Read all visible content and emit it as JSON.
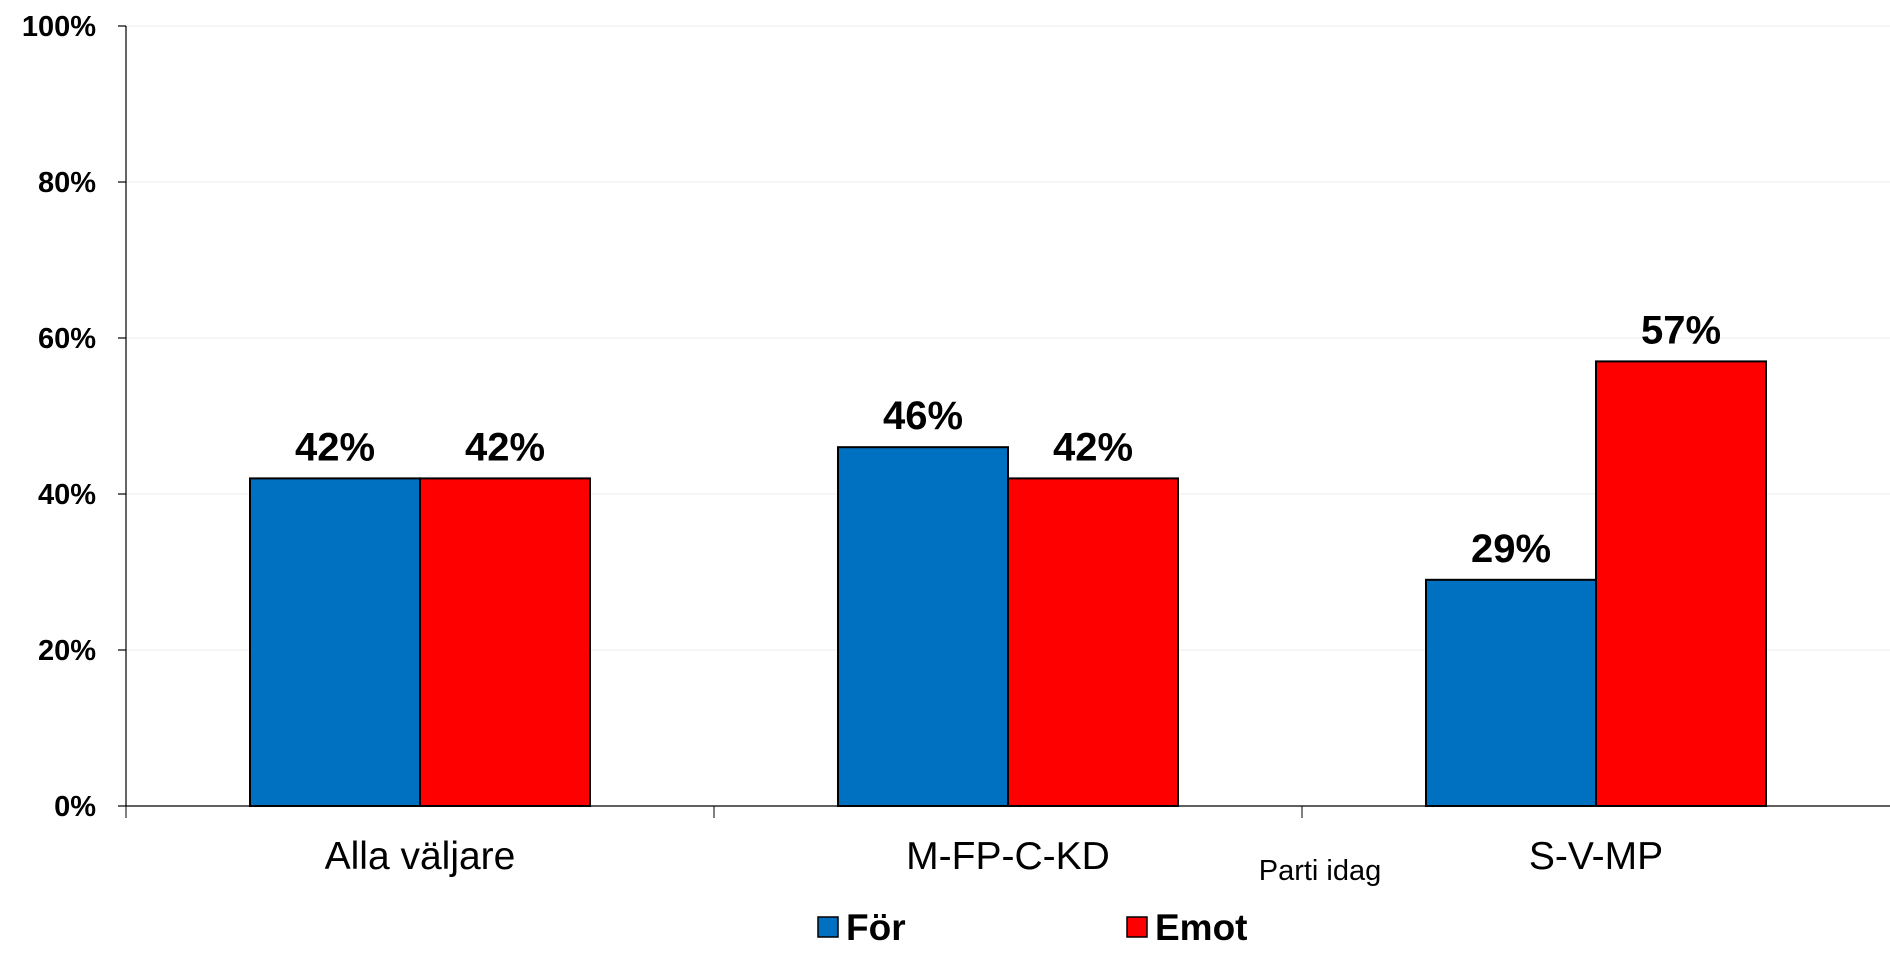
{
  "chart_data": {
    "type": "bar",
    "categories": [
      "Alla väljare",
      "M-FP-C-KD",
      "S-V-MP"
    ],
    "series": [
      {
        "name": "För",
        "values": [
          42,
          46,
          29
        ],
        "color": "#0070C0"
      },
      {
        "name": "Emot",
        "values": [
          42,
          42,
          57
        ],
        "color": "#FF0000"
      }
    ],
    "data_labels": [
      [
        "42%",
        "46%",
        "29%"
      ],
      [
        "42%",
        "42%",
        "57%"
      ]
    ],
    "title": "",
    "xlabel": "Parti idag",
    "ylabel": "",
    "ylim": [
      0,
      100
    ],
    "yticks": [
      "0%",
      "20%",
      "40%",
      "60%",
      "80%",
      "100%"
    ],
    "grid": true,
    "legend_position": "bottom"
  }
}
